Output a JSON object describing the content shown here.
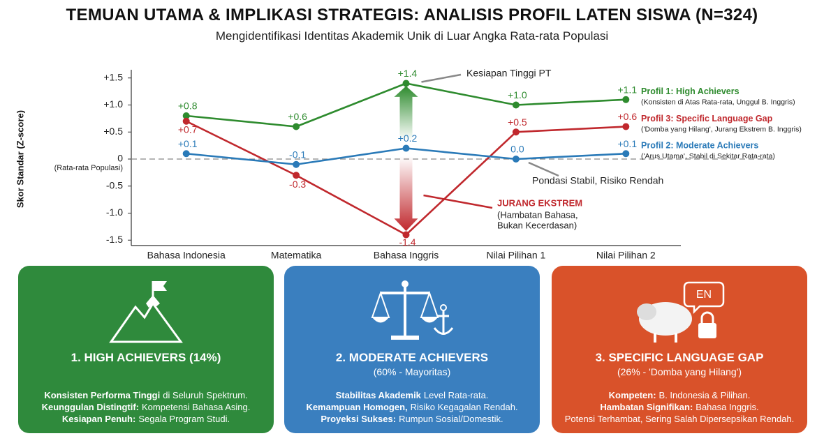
{
  "header": {
    "title": "TEMUAN UTAMA & IMPLIKASI STRATEGIS: ANALISIS PROFIL LATEN SISWA (N=324)",
    "subtitle": "Mengidentifikasi Identitas Akademik Unik di Luar Angka Rata-rata Populasi"
  },
  "chart_data": {
    "type": "line",
    "y_label": "Skor Standar (Z-score)",
    "zero_note": "(Rata-rata Populasi)",
    "categories": [
      "Bahasa Indonesia",
      "Matematika",
      "Bahasa Inggris",
      "Nilai Pilihan 1",
      "Nilai Pilihan 2"
    ],
    "series": [
      {
        "name": "Profil 1: High Achievers",
        "description": "(Konsisten di Atas Rata-rata, Unggul B. Inggris)",
        "color": "#2e8b2e",
        "values": [
          0.8,
          0.6,
          1.4,
          1.0,
          1.1
        ],
        "value_labels": [
          "+0.8",
          "+0.6",
          "+1.4",
          "+1.0",
          "+1.1"
        ]
      },
      {
        "name": "Profil 3: Specific Language Gap",
        "description": "('Domba yang Hilang', Jurang Ekstrem B. Inggris)",
        "color": "#c0282d",
        "values": [
          0.7,
          -0.3,
          -1.4,
          0.5,
          0.6
        ],
        "value_labels": [
          "+0.7",
          "-0.3",
          "-1.4",
          "+0.5",
          "+0.6"
        ]
      },
      {
        "name": "Profil 2: Moderate Achievers",
        "description": "('Arus Utama', Stabil di Sekitar Rata-rata)",
        "color": "#2a7ab8",
        "values": [
          0.1,
          -0.1,
          0.2,
          0.0,
          0.1
        ],
        "value_labels": [
          "+0.1",
          "-0.1",
          "+0.2",
          "0.0",
          "+0.1"
        ]
      }
    ],
    "ylim": [
      -1.6,
      1.6
    ],
    "yticks": [
      {
        "value": 1.5,
        "label": "+1.5"
      },
      {
        "value": 1.0,
        "label": "+1.0"
      },
      {
        "value": 0.5,
        "label": "+0.5"
      },
      0,
      -0.5,
      {
        "value": -1.0,
        "label": "-1.0"
      },
      -1.5
    ],
    "zero_line": "dashed",
    "annotations": {
      "peak": "Kesiapan Tinggi PT",
      "stable": "Pondasi Stabil, Risiko Rendah",
      "gap_title": "JURANG EKSTREM",
      "gap_lines": [
        "(Hambatan Bahasa,",
        "Bukan Kecerdasan)"
      ]
    }
  },
  "cards": [
    {
      "title": "1. HIGH ACHIEVERS (14%)",
      "color": "#2f8a3c",
      "lines": [
        {
          "bold": "Konsisten Performa Tinggi",
          "text": "di Seluruh Spektrum."
        },
        {
          "bold": "Keunggulan Distingtif:",
          "text": "Kompetensi Bahasa Asing."
        },
        {
          "bold": "Kesiapan Penuh:",
          "text": "Segala Program Studi."
        }
      ]
    },
    {
      "title": "2. MODERATE ACHIEVERS",
      "subtitle": "(60% - Mayoritas)",
      "color": "#3a7fbf",
      "lines": [
        {
          "bold": "Stabilitas Akademik",
          "text": "Level Rata-rata."
        },
        {
          "bold": "Kemampuan Homogen,",
          "text": "Risiko Kegagalan Rendah."
        },
        {
          "bold": "Proyeksi Sukses:",
          "text": "Rumpun Sosial/Domestik."
        }
      ]
    },
    {
      "title": "3. SPECIFIC LANGUAGE GAP",
      "subtitle": "(26% - 'Domba yang Hilang')",
      "icon_text": "EN",
      "color": "#d9522a",
      "lines": [
        {
          "bold": "Kompeten:",
          "text": "B. Indonesia & Pilihan."
        },
        {
          "bold": "Hambatan Signifikan:",
          "text": "Bahasa Inggris."
        },
        {
          "text": "Potensi Terhambat, Sering Salah Dipersepsikan Rendah."
        }
      ]
    }
  ]
}
